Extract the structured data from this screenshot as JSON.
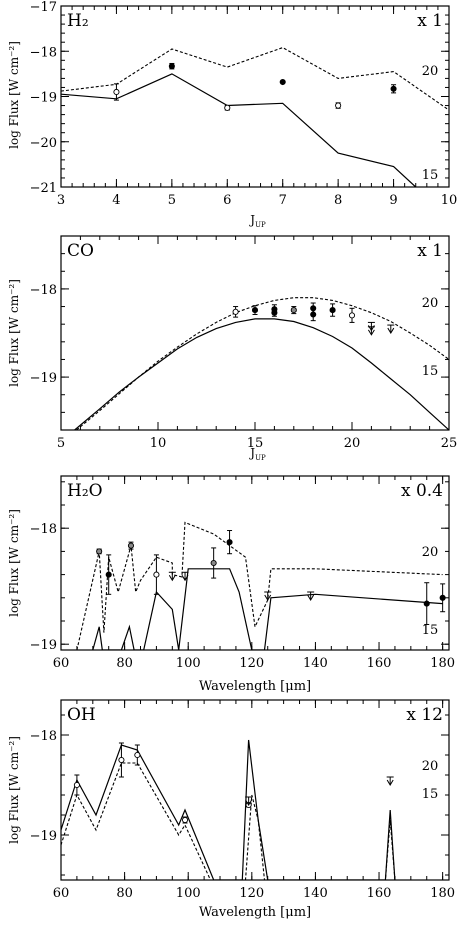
{
  "figure": {
    "ylabel": "log Flux [W cm⁻²]"
  },
  "chart_data": [
    {
      "type": "line",
      "panel": "H2",
      "species_label": "H₂",
      "scale_label": "x 1",
      "xlabel": "J",
      "xlabel_sub": "UP",
      "xlim": [
        3,
        10
      ],
      "ylim": [
        -21,
        -17
      ],
      "xticks": [
        3,
        4,
        5,
        6,
        7,
        8,
        9,
        10
      ],
      "yticks": [
        -21,
        -20,
        -19,
        -18,
        -17
      ],
      "series": [
        {
          "style": "dashed",
          "end_label": "20",
          "x": [
            3,
            4,
            5,
            6,
            7,
            8,
            9,
            10
          ],
          "y": [
            -18.88,
            -18.73,
            -17.95,
            -18.35,
            -17.92,
            -18.6,
            -18.45,
            -19.3
          ]
        },
        {
          "style": "solid",
          "end_label": "15",
          "x": [
            3,
            4,
            5,
            6,
            7,
            8,
            9,
            9.4
          ],
          "y": [
            -18.95,
            -19.05,
            -18.5,
            -19.2,
            -19.15,
            -20.25,
            -20.55,
            -21.0
          ]
        }
      ],
      "points": [
        {
          "x": 4,
          "y": -18.9,
          "err": 0.18,
          "marker": "open"
        },
        {
          "x": 5,
          "y": -18.33,
          "err": 0.06,
          "marker": "filled"
        },
        {
          "x": 6,
          "y": -19.25,
          "err": 0.05,
          "marker": "open"
        },
        {
          "x": 7,
          "y": -18.68,
          "err": 0.0,
          "marker": "filled"
        },
        {
          "x": 8,
          "y": -19.2,
          "err": 0.06,
          "marker": "open"
        },
        {
          "x": 9,
          "y": -18.83,
          "err": 0.09,
          "marker": "filled"
        }
      ],
      "upper_limits": []
    },
    {
      "type": "line",
      "panel": "CO",
      "species_label": "CO",
      "scale_label": "x 1",
      "xlabel": "J",
      "xlabel_sub": "UP",
      "xlim": [
        5,
        25
      ],
      "ylim": [
        -19.6,
        -17.4
      ],
      "xticks": [
        5,
        10,
        15,
        20,
        25
      ],
      "yticks": [
        -19,
        -18
      ],
      "series": [
        {
          "style": "dashed",
          "end_label": "20",
          "x": [
            5.8,
            7,
            8,
            9,
            10,
            11,
            12,
            13,
            14,
            15,
            16,
            17,
            18,
            19,
            20,
            21,
            22,
            23,
            24,
            25
          ],
          "y": [
            -19.6,
            -19.38,
            -19.19,
            -19.0,
            -18.82,
            -18.66,
            -18.51,
            -18.38,
            -18.27,
            -18.19,
            -18.13,
            -18.1,
            -18.1,
            -18.13,
            -18.19,
            -18.27,
            -18.37,
            -18.5,
            -18.64,
            -18.8
          ]
        },
        {
          "style": "solid",
          "end_label": "15",
          "x": [
            5.7,
            7,
            8,
            9,
            10,
            11,
            12,
            13,
            14,
            15,
            16,
            17,
            18,
            19,
            20,
            21,
            22,
            23,
            24,
            25
          ],
          "y": [
            -19.6,
            -19.36,
            -19.17,
            -19.0,
            -18.84,
            -18.68,
            -18.55,
            -18.45,
            -18.38,
            -18.34,
            -18.34,
            -18.37,
            -18.44,
            -18.54,
            -18.67,
            -18.84,
            -19.02,
            -19.2,
            -19.4,
            -19.6
          ]
        }
      ],
      "points": [
        {
          "x": 14,
          "y": -18.26,
          "err": 0.06,
          "marker": "open"
        },
        {
          "x": 15,
          "y": -18.24,
          "err": 0.05,
          "marker": "filled"
        },
        {
          "x": 16,
          "y": -18.23,
          "err": 0.05,
          "marker": "filled"
        },
        {
          "x": 16,
          "y": -18.27,
          "err": 0.04,
          "marker": "filled"
        },
        {
          "x": 17,
          "y": -18.24,
          "err": 0.04,
          "marker": "grey"
        },
        {
          "x": 18,
          "y": -18.22,
          "err": 0.06,
          "marker": "filled"
        },
        {
          "x": 18,
          "y": -18.29,
          "err": 0.07,
          "marker": "filled"
        },
        {
          "x": 19,
          "y": -18.24,
          "err": 0.07,
          "marker": "filled"
        },
        {
          "x": 20,
          "y": -18.3,
          "err": 0.08,
          "marker": "open"
        }
      ],
      "upper_limits": [
        {
          "x": 21,
          "y": -18.38
        },
        {
          "x": 21,
          "y": -18.43
        },
        {
          "x": 22,
          "y": -18.41
        }
      ]
    },
    {
      "type": "line",
      "panel": "H2O",
      "species_label": "H₂O",
      "scale_label": "x 0.4",
      "xlabel": "Wavelength [μm]",
      "xlim": [
        60,
        182
      ],
      "ylim": [
        -19.05,
        -17.55
      ],
      "xticks": [
        60,
        80,
        100,
        120,
        140,
        160,
        180
      ],
      "yticks": [
        -19,
        -18
      ],
      "series": [
        {
          "style": "dashed",
          "end_label": "20",
          "x": [
            65,
            72,
            73.5,
            75,
            78,
            82,
            83.5,
            85,
            90,
            95,
            95,
            98,
            99,
            108,
            113,
            118,
            121,
            125,
            126,
            140,
            180
          ],
          "y": [
            -19.05,
            -18.2,
            -18.9,
            -18.25,
            -18.55,
            -18.15,
            -18.55,
            -18.45,
            -18.25,
            -18.3,
            -18.4,
            -18.42,
            -17.95,
            -18.05,
            -18.15,
            -18.25,
            -18.85,
            -18.62,
            -18.35,
            -18.35,
            -18.4
          ]
        },
        {
          "style": "solid",
          "end_label": "15",
          "x": [
            70,
            72,
            73,
            79,
            81.5,
            83,
            86,
            90,
            95,
            97,
            100,
            113,
            116,
            120,
            124,
            126,
            140,
            180
          ],
          "y": [
            -19.05,
            -18.85,
            -19.05,
            -19.05,
            -18.85,
            -19.05,
            -19.05,
            -18.55,
            -18.7,
            -19.05,
            -18.35,
            -18.35,
            -18.55,
            -19.05,
            -19.05,
            -18.6,
            -18.57,
            -18.65
          ]
        }
      ],
      "points": [
        {
          "x": 72,
          "y": -18.2,
          "err": 0.02,
          "marker": "grey"
        },
        {
          "x": 75,
          "y": -18.4,
          "err": 0.17,
          "marker": "filled"
        },
        {
          "x": 82,
          "y": -18.15,
          "err": 0.03,
          "marker": "grey"
        },
        {
          "x": 90,
          "y": -18.4,
          "err": 0.17,
          "marker": "open"
        },
        {
          "x": 108,
          "y": -18.3,
          "err": 0.13,
          "marker": "grey"
        },
        {
          "x": 113,
          "y": -18.12,
          "err": 0.1,
          "marker": "filled"
        },
        {
          "x": 175,
          "y": -18.65,
          "err": 0.18,
          "marker": "filled"
        },
        {
          "x": 180,
          "y": -18.6,
          "err": 0.12,
          "marker": "filled"
        }
      ],
      "upper_limits": [
        {
          "x": 95,
          "y": -18.38
        },
        {
          "x": 99,
          "y": -18.38
        },
        {
          "x": 125,
          "y": -18.55
        },
        {
          "x": 138.5,
          "y": -18.55
        }
      ]
    },
    {
      "type": "line",
      "panel": "OH",
      "species_label": "OH",
      "scale_label": "x 12",
      "xlabel": "Wavelength [μm]",
      "xlim": [
        60,
        182
      ],
      "ylim": [
        -19.45,
        -17.65
      ],
      "xticks": [
        60,
        80,
        100,
        120,
        140,
        160,
        180
      ],
      "yticks": [
        -19,
        -18
      ],
      "series": [
        {
          "style": "solid",
          "end_label": "15",
          "x": [
            60,
            65,
            71,
            79,
            84,
            97,
            99,
            108,
            117,
            119,
            122,
            125,
            162,
            163.5,
            165
          ],
          "y": [
            -18.95,
            -18.45,
            -18.8,
            -18.1,
            -18.15,
            -18.9,
            -18.75,
            -19.45,
            -19.45,
            -18.05,
            -18.85,
            -19.45,
            -19.45,
            -18.75,
            -19.45
          ]
        },
        {
          "style": "dashed",
          "end_label": "20",
          "x": [
            60,
            65,
            71,
            79,
            84,
            97,
            99,
            107,
            118,
            120,
            122,
            124,
            162,
            163.5,
            165
          ],
          "y": [
            -19.1,
            -18.6,
            -18.95,
            -18.28,
            -18.28,
            -19.0,
            -18.9,
            -19.45,
            -19.45,
            -18.6,
            -18.85,
            -19.45,
            -19.45,
            -18.85,
            -19.45
          ]
        }
      ],
      "points": [
        {
          "x": 65,
          "y": -18.5,
          "err": 0.1,
          "marker": "open"
        },
        {
          "x": 79,
          "y": -18.25,
          "err": 0.17,
          "marker": "open"
        },
        {
          "x": 84,
          "y": -18.2,
          "err": 0.1,
          "marker": "open"
        },
        {
          "x": 99,
          "y": -18.85,
          "err": 0.03,
          "marker": "open"
        },
        {
          "x": 119,
          "y": -18.7,
          "err": 0.02,
          "marker": "open"
        }
      ],
      "upper_limits": [
        {
          "x": 119,
          "y": -18.62
        },
        {
          "x": 163.5,
          "y": -18.42
        }
      ]
    }
  ]
}
